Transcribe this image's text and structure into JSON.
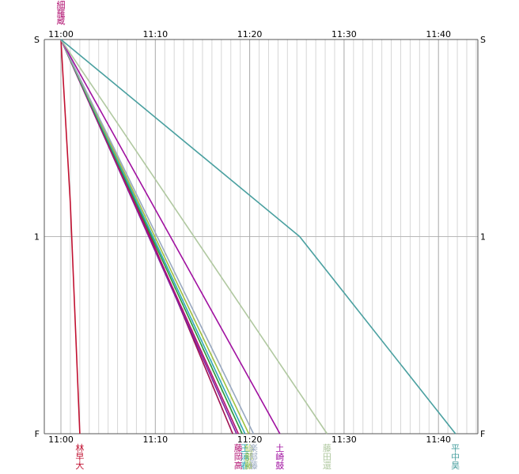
{
  "chart_data": {
    "type": "line",
    "title": "",
    "xlabel": "",
    "ylabel": "",
    "x_unit": "minutes",
    "xlim": [
      0,
      44
    ],
    "x_ticks": [
      {
        "value": 0,
        "label": "11:00"
      },
      {
        "value": 10,
        "label": "11:10"
      },
      {
        "value": 20,
        "label": "11:20"
      },
      {
        "value": 30,
        "label": "11:30"
      },
      {
        "value": 40,
        "label": "11:40"
      }
    ],
    "x_minor_step": 1,
    "y_ticks": [
      {
        "value": 0,
        "label": "S"
      },
      {
        "value": 1,
        "label": "1"
      },
      {
        "value": 2,
        "label": "F"
      }
    ],
    "ylim": [
      0,
      2
    ],
    "grid": true,
    "start_names": {
      "color": "#b01070",
      "names": [
        "細",
        "羅",
        "蔵"
      ]
    },
    "series": [
      {
        "color": "#c01030",
        "x": [
          0,
          1,
          2
        ],
        "y": [
          0,
          0.83,
          2
        ],
        "finish_label": [
          "林",
          "早",
          "大"
        ]
      },
      {
        "color": "#a01050",
        "x": [
          0,
          9.5,
          18.2
        ],
        "y": [
          0,
          1,
          2
        ],
        "finish_label": []
      },
      {
        "color": "#8020a0",
        "x": [
          0,
          18.6
        ],
        "y": [
          0,
          2
        ],
        "finish_label": []
      },
      {
        "color": "#b01070",
        "x": [
          0,
          18.8
        ],
        "y": [
          0,
          2
        ],
        "finish_label": [
          "藤",
          "岡",
          "高"
        ]
      },
      {
        "color": "#2a9a3a",
        "x": [
          0,
          19.2
        ],
        "y": [
          0,
          2
        ],
        "finish_label": []
      },
      {
        "color": "#30a8b8",
        "x": [
          0,
          19.5
        ],
        "y": [
          0,
          2
        ],
        "finish_label": [
          "王",
          "浦",
          "春"
        ]
      },
      {
        "color": "#a0c040",
        "x": [
          0,
          19.9
        ],
        "y": [
          0,
          2
        ],
        "finish_label": [
          "仙",
          "部",
          "藤"
        ]
      },
      {
        "color": "#98a8c0",
        "x": [
          0,
          20.4
        ],
        "y": [
          0,
          2
        ],
        "finish_label": [
          "楽",
          "部",
          "藤"
        ]
      },
      {
        "color": "#a010a0",
        "x": [
          0,
          23.2
        ],
        "y": [
          0,
          2
        ],
        "finish_label": [
          "土",
          "崎",
          "鼓"
        ]
      },
      {
        "color": "#b0c8a0",
        "x": [
          0,
          28.2
        ],
        "y": [
          0,
          2
        ],
        "finish_label": [
          "藤",
          "田",
          "還"
        ]
      },
      {
        "color": "#4aa0a0",
        "x": [
          0,
          25.3,
          41.8
        ],
        "y": [
          0,
          1,
          2
        ],
        "finish_label": [
          "平",
          "中",
          "昊"
        ]
      }
    ]
  }
}
